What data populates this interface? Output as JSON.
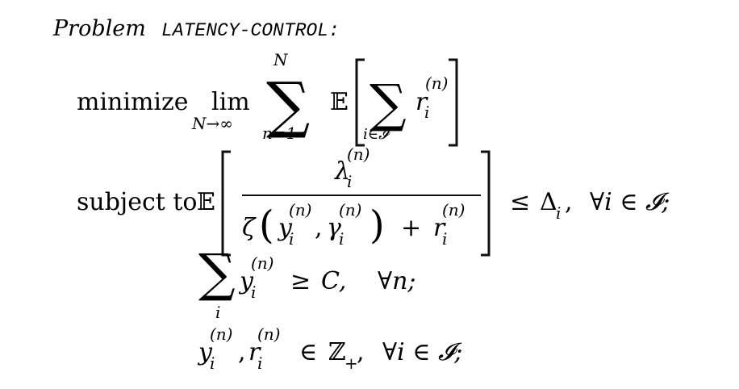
{
  "problem": {
    "label": "Problem",
    "name": "LATENCY-CONTROL:"
  },
  "objective": {
    "keyword": "minimize",
    "lim": "lim",
    "lim_sub": "N→∞",
    "sum": "∑",
    "sum_top": "N",
    "sum_bottom": "n=1",
    "expectation": "𝔼",
    "inner_sum_bottom": "i∈𝓘",
    "var": "r",
    "var_sub": "i",
    "var_sup": "(n)"
  },
  "constraint1": {
    "keyword": "subject to",
    "expectation": "𝔼",
    "numerator_var": "λ",
    "numerator_sub": "i",
    "numerator_sup": "(n)",
    "den_func": "ζ",
    "den_arg1": "y",
    "den_arg1_sub": "i",
    "den_arg1_sup": "(n)",
    "den_comma": ",",
    "den_arg2": "γ",
    "den_arg2_sub": "i",
    "den_arg2_sup": "(n)",
    "den_plus": "+",
    "den_var": "r",
    "den_var_sub": "i",
    "den_var_sup": "(n)",
    "rel": "≤",
    "bound": "Δ",
    "bound_sub": "i",
    "bound_comma": ",",
    "quantifier": "∀i ∈ 𝓘;"
  },
  "constraint2": {
    "sum": "∑",
    "sum_bottom": "i",
    "var": "y",
    "var_sub": "i",
    "var_sup": "(n)",
    "rel": "≥",
    "rhs": "C,",
    "quantifier": "∀n;"
  },
  "constraint3": {
    "var1": "y",
    "var1_sub": "i",
    "var1_sup": "(n)",
    "comma": ",",
    "var2": "r",
    "var2_sub": "i",
    "var2_sup": "(n)",
    "rel": "∈",
    "set": "ℤ",
    "set_sub": "+",
    "set_comma": ",",
    "quantifier": "∀i ∈ 𝓘;"
  }
}
